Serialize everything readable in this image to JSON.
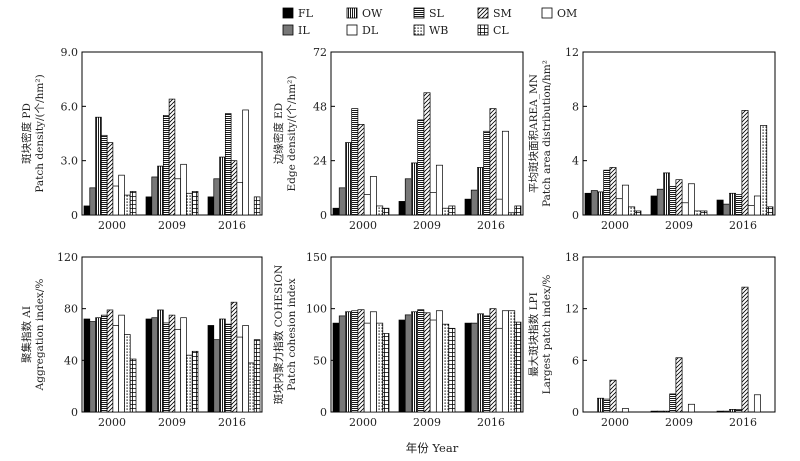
{
  "legend": [
    {
      "key": "FL",
      "pattern": "solid-black"
    },
    {
      "key": "OW",
      "pattern": "vertical-lines"
    },
    {
      "key": "SL",
      "pattern": "horizontal-lines"
    },
    {
      "key": "SM",
      "pattern": "diagonal-hatch"
    },
    {
      "key": "OM",
      "pattern": "white"
    },
    {
      "key": "IL",
      "pattern": "solid-gray"
    },
    {
      "key": "DL",
      "pattern": "white"
    },
    {
      "key": "WB",
      "pattern": "dots"
    },
    {
      "key": "CL",
      "pattern": "grid"
    }
  ],
  "series_order": [
    "FL",
    "IL",
    "OW",
    "SL",
    "SM",
    "DL",
    "OM",
    "WB",
    "CL"
  ],
  "x_axis_title": "年份 Year",
  "chart_data": [
    {
      "type": "bar",
      "categories": [
        "2000",
        "2009",
        "2016"
      ],
      "ylabel": [
        "斑块密度 PD",
        "Patch density/(个/hm²)"
      ],
      "yticks": [
        "0",
        "3.0",
        "6.0",
        "9.0"
      ],
      "ylim": [
        0,
        9
      ],
      "series": [
        {
          "name": "FL",
          "values": [
            0.5,
            1.0,
            1.0
          ]
        },
        {
          "name": "IL",
          "values": [
            1.5,
            2.1,
            2.0
          ]
        },
        {
          "name": "OW",
          "values": [
            5.4,
            2.7,
            3.2
          ]
        },
        {
          "name": "SL",
          "values": [
            4.4,
            5.5,
            5.6
          ]
        },
        {
          "name": "SM",
          "values": [
            4.0,
            6.4,
            3.0
          ]
        },
        {
          "name": "DL",
          "values": [
            1.6,
            2.0,
            1.8
          ]
        },
        {
          "name": "OM",
          "values": [
            2.2,
            2.8,
            5.8
          ]
        },
        {
          "name": "WB",
          "values": [
            1.1,
            1.2,
            0.0
          ]
        },
        {
          "name": "CL",
          "values": [
            1.3,
            1.3,
            1.0
          ]
        }
      ]
    },
    {
      "type": "bar",
      "categories": [
        "2000",
        "2009",
        "2016"
      ],
      "ylabel": [
        "边缘密度 ED",
        "Edge density/(个/hm²)"
      ],
      "yticks": [
        "0",
        "24",
        "48",
        "72"
      ],
      "ylim": [
        0,
        72
      ],
      "series": [
        {
          "name": "FL",
          "values": [
            3,
            6,
            7
          ]
        },
        {
          "name": "IL",
          "values": [
            12,
            16,
            11
          ]
        },
        {
          "name": "OW",
          "values": [
            32,
            23,
            21
          ]
        },
        {
          "name": "SL",
          "values": [
            47,
            42,
            37
          ]
        },
        {
          "name": "SM",
          "values": [
            40,
            54,
            47
          ]
        },
        {
          "name": "DL",
          "values": [
            9,
            10,
            7
          ]
        },
        {
          "name": "OM",
          "values": [
            17,
            22,
            37
          ]
        },
        {
          "name": "WB",
          "values": [
            4,
            3,
            1
          ]
        },
        {
          "name": "CL",
          "values": [
            3,
            4,
            4
          ]
        }
      ]
    },
    {
      "type": "bar",
      "categories": [
        "2000",
        "2009",
        "2016"
      ],
      "ylabel": [
        "平均斑块面积AREA_MN",
        "Patch area distribution/hm²"
      ],
      "yticks": [
        "0",
        "4",
        "8",
        "12"
      ],
      "ylim": [
        0,
        12
      ],
      "series": [
        {
          "name": "FL",
          "values": [
            1.6,
            1.4,
            1.1
          ]
        },
        {
          "name": "IL",
          "values": [
            1.8,
            1.9,
            0.8
          ]
        },
        {
          "name": "OW",
          "values": [
            1.7,
            3.1,
            1.6
          ]
        },
        {
          "name": "SL",
          "values": [
            3.3,
            2.1,
            1.5
          ]
        },
        {
          "name": "SM",
          "values": [
            3.5,
            2.6,
            7.7
          ]
        },
        {
          "name": "DL",
          "values": [
            1.2,
            0.9,
            0.7
          ]
        },
        {
          "name": "OM",
          "values": [
            2.2,
            2.3,
            1.4
          ]
        },
        {
          "name": "WB",
          "values": [
            0.6,
            0.3,
            6.6
          ]
        },
        {
          "name": "CL",
          "values": [
            0.3,
            0.3,
            0.6
          ]
        }
      ]
    },
    {
      "type": "bar",
      "categories": [
        "2000",
        "2009",
        "2016"
      ],
      "ylabel": [
        "聚集指数 AI",
        "Aggregation index/%"
      ],
      "yticks": [
        "0",
        "40",
        "80",
        "120"
      ],
      "ylim": [
        0,
        120
      ],
      "series": [
        {
          "name": "FL",
          "values": [
            72,
            72,
            67
          ]
        },
        {
          "name": "IL",
          "values": [
            70,
            73,
            56
          ]
        },
        {
          "name": "OW",
          "values": [
            73,
            79,
            72
          ]
        },
        {
          "name": "SL",
          "values": [
            75,
            69,
            68
          ]
        },
        {
          "name": "SM",
          "values": [
            79,
            75,
            85
          ]
        },
        {
          "name": "DL",
          "values": [
            67,
            64,
            58
          ]
        },
        {
          "name": "OM",
          "values": [
            75,
            73,
            67
          ]
        },
        {
          "name": "WB",
          "values": [
            60,
            44,
            38
          ]
        },
        {
          "name": "CL",
          "values": [
            41,
            47,
            56
          ]
        }
      ]
    },
    {
      "type": "bar",
      "categories": [
        "2000",
        "2009",
        "2016"
      ],
      "ylabel": [
        "斑块内聚力指数 COHESION",
        "Patch cohesion index"
      ],
      "yticks": [
        "0",
        "50",
        "100",
        "150"
      ],
      "ylim": [
        0,
        150
      ],
      "series": [
        {
          "name": "FL",
          "values": [
            86,
            89,
            86
          ]
        },
        {
          "name": "IL",
          "values": [
            93,
            94,
            86
          ]
        },
        {
          "name": "OW",
          "values": [
            97,
            97,
            95
          ]
        },
        {
          "name": "SL",
          "values": [
            98,
            99,
            93
          ]
        },
        {
          "name": "SM",
          "values": [
            99,
            96,
            100
          ]
        },
        {
          "name": "DL",
          "values": [
            86,
            89,
            81
          ]
        },
        {
          "name": "OM",
          "values": [
            97,
            98,
            98
          ]
        },
        {
          "name": "WB",
          "values": [
            86,
            85,
            98
          ]
        },
        {
          "name": "CL",
          "values": [
            76,
            81,
            87
          ]
        }
      ]
    },
    {
      "type": "bar",
      "categories": [
        "2000",
        "2009",
        "2016"
      ],
      "ylabel": [
        "最大斑块指数 LPI",
        "Largest patch index/%"
      ],
      "yticks": [
        "0",
        "6",
        "12",
        "18"
      ],
      "ylim": [
        0,
        18
      ],
      "series": [
        {
          "name": "FL",
          "values": [
            0.0,
            0.1,
            0.1
          ]
        },
        {
          "name": "IL",
          "values": [
            0.0,
            0.1,
            0.1
          ]
        },
        {
          "name": "OW",
          "values": [
            1.6,
            0.1,
            0.3
          ]
        },
        {
          "name": "SL",
          "values": [
            1.5,
            2.1,
            0.3
          ]
        },
        {
          "name": "SM",
          "values": [
            3.7,
            6.3,
            14.5
          ]
        },
        {
          "name": "DL",
          "values": [
            0.0,
            0.0,
            0.0
          ]
        },
        {
          "name": "OM",
          "values": [
            0.4,
            0.9,
            2.0
          ]
        },
        {
          "name": "WB",
          "values": [
            0.0,
            0.0,
            0.0
          ]
        },
        {
          "name": "CL",
          "values": [
            0.0,
            0.0,
            0.0
          ]
        }
      ]
    }
  ]
}
